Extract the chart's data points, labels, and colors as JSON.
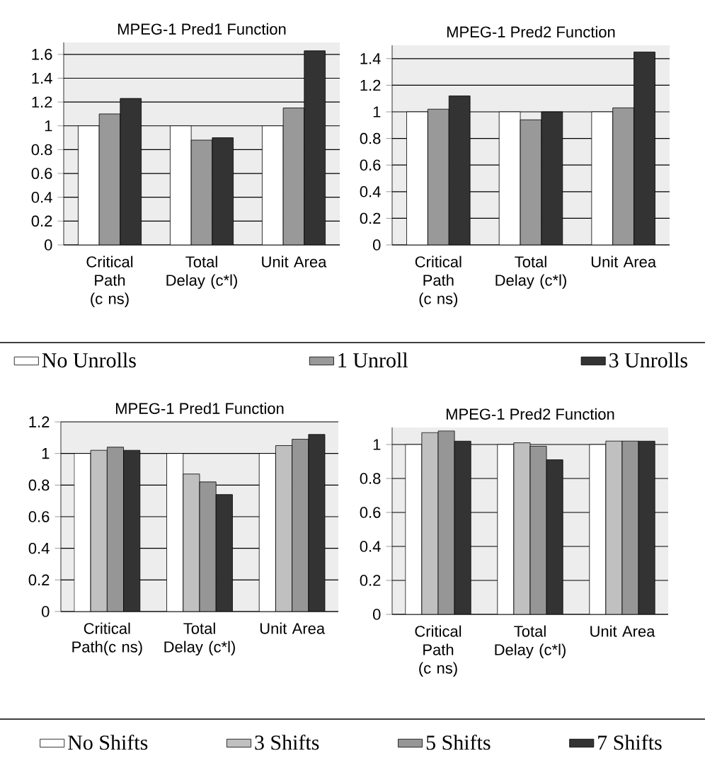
{
  "chart_data": [
    {
      "type": "bar",
      "title": "MPEG-1 Pred1 Function",
      "categories": [
        "Critical Path (c ns)",
        "Total Delay (c*l)",
        "Unit Area"
      ],
      "series": [
        {
          "name": "No Unrolls",
          "color": "#ffffff",
          "values": [
            1,
            1,
            1
          ]
        },
        {
          "name": "1 Unroll",
          "color": "#999999",
          "values": [
            1.1,
            0.88,
            1.15
          ]
        },
        {
          "name": "3 Unrolls",
          "color": "#333333",
          "values": [
            1.23,
            0.9,
            1.63
          ]
        }
      ],
      "ylim": [
        0,
        1.7
      ],
      "yticks": [
        0,
        0.2,
        0.4,
        0.6,
        0.8,
        1,
        1.2,
        1.4,
        1.6
      ],
      "grid": "y",
      "legend": "bottom"
    },
    {
      "type": "bar",
      "title": "MPEG-1 Pred2 Function",
      "categories": [
        "Critical Path (c ns)",
        "Total Delay (c*l)",
        "Unit Area"
      ],
      "series": [
        {
          "color": "#ffffff",
          "values": [
            1,
            1,
            1
          ]
        },
        {
          "color": "#999999",
          "values": [
            1.02,
            0.94,
            1.03
          ]
        },
        {
          "color": "#333333",
          "values": [
            1.12,
            1.0,
            1.45
          ]
        }
      ],
      "ylim": [
        0,
        1.5
      ],
      "yticks": [
        0,
        0.2,
        0.4,
        0.6,
        0.8,
        1,
        1.2,
        1.4
      ],
      "grid": "y"
    },
    {
      "type": "bar",
      "title": "MPEG-1 Pred1 Function",
      "categories": [
        "Critical Path(c ns)",
        "Total Delay (c*l)",
        "Unit Area"
      ],
      "series": [
        {
          "name": "No Shifts",
          "color": "#ffffff",
          "values": [
            1,
            1,
            1
          ]
        },
        {
          "name": "3 Shifts",
          "color": "#c0c0c0",
          "values": [
            1.02,
            0.87,
            1.05
          ]
        },
        {
          "name": "5 Shifts",
          "color": "#969696",
          "values": [
            1.04,
            0.82,
            1.09
          ]
        },
        {
          "name": "7 Shifts",
          "color": "#333333",
          "values": [
            1.02,
            0.74,
            1.12
          ]
        }
      ],
      "ylim": [
        0,
        1.2
      ],
      "yticks": [
        0,
        0.2,
        0.4,
        0.6,
        0.8,
        1,
        1.2
      ],
      "grid": "y",
      "legend": "bottom"
    },
    {
      "type": "bar",
      "title": "MPEG-1 Pred2 Function",
      "categories": [
        "Critical Path (c ns)",
        "Total Delay (c*l)",
        "Unit Area"
      ],
      "series": [
        {
          "color": "#ffffff",
          "values": [
            1,
            1,
            1
          ]
        },
        {
          "color": "#c0c0c0",
          "values": [
            1.07,
            1.01,
            1.02
          ]
        },
        {
          "color": "#969696",
          "values": [
            1.08,
            0.99,
            1.02
          ]
        },
        {
          "color": "#333333",
          "values": [
            1.02,
            0.91,
            1.02
          ]
        }
      ],
      "ylim": [
        0,
        1.1
      ],
      "yticks": [
        0,
        0.2,
        0.4,
        0.6,
        0.8,
        1
      ],
      "grid": "y"
    }
  ]
}
